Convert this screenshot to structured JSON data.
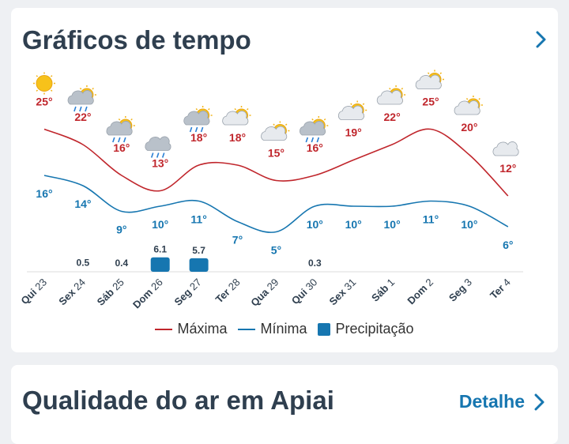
{
  "header": {
    "title": "Gráficos de tempo"
  },
  "air_quality": {
    "title": "Qualidade do ar em Apiai",
    "detail_label": "Detalhe"
  },
  "colors": {
    "max": "#c0262c",
    "min": "#1676b0",
    "precip": "#1676b0",
    "title": "#2f3f4f"
  },
  "chart_data": {
    "type": "line",
    "categories": [
      {
        "dow": "Qui",
        "day": "23"
      },
      {
        "dow": "Sex",
        "day": "24"
      },
      {
        "dow": "Sáb",
        "day": "25"
      },
      {
        "dow": "Dom",
        "day": "26"
      },
      {
        "dow": "Seg",
        "day": "27"
      },
      {
        "dow": "Ter",
        "day": "28"
      },
      {
        "dow": "Qua",
        "day": "29"
      },
      {
        "dow": "Qui",
        "day": "30"
      },
      {
        "dow": "Sex",
        "day": "31"
      },
      {
        "dow": "Sáb",
        "day": "1"
      },
      {
        "dow": "Dom",
        "day": "2"
      },
      {
        "dow": "Seg",
        "day": "3"
      },
      {
        "dow": "Ter",
        "day": "4"
      }
    ],
    "icons": [
      "sun-icon",
      "sun-cloud-rain-icon",
      "sun-cloud-rain-icon",
      "cloud-rain-icon",
      "sun-cloud-rain-icon",
      "sun-cloud-icon",
      "sun-cloud-icon",
      "sun-cloud-rain-icon",
      "sun-cloud-icon",
      "sun-cloud-icon",
      "sun-cloud-icon",
      "sun-cloud-icon",
      "cloud-icon"
    ],
    "series": [
      {
        "name": "Máxima",
        "values": [
          25,
          22,
          16,
          13,
          18,
          18,
          15,
          16,
          19,
          22,
          25,
          20,
          12
        ]
      },
      {
        "name": "Mínima",
        "values": [
          16,
          14,
          9,
          10,
          11,
          7,
          5,
          10,
          10,
          10,
          11,
          10,
          6
        ]
      },
      {
        "name": "Precipitação",
        "values": [
          null,
          0.5,
          0.4,
          6.1,
          5.7,
          null,
          null,
          0.3,
          null,
          null,
          null,
          null,
          null
        ]
      }
    ],
    "unit": "°"
  }
}
